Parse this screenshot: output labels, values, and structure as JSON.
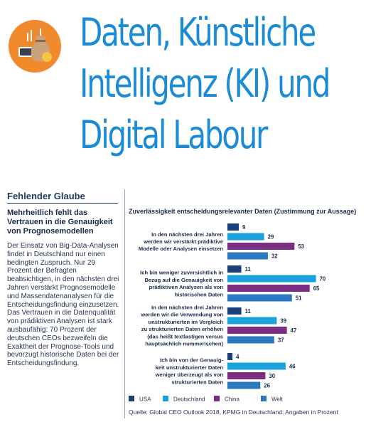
{
  "header": {
    "icon_name": "money-bag-icon",
    "title_lines": [
      "Daten, Künstliche",
      "Intelligenz (KI) und",
      "Digital Labour"
    ]
  },
  "article": {
    "section_label": "Fehlender Glaube",
    "subhead": "Mehrheitlich fehlt das Vertrauen in die Genauigkeit von Prognosemodellen",
    "body": "Der Einsatz von Big-Data-Analysen findet in Deutschland nur einen bedingten Zuspruch. Nur 29 Prozent der Befragten beabsichtigen, in den nächsten drei Jahren verstärkt Prognosemodelle und Massendatenanalysen für die Entscheidungsfindung einzusetzen. Das Vertrauen in die Datenqualität von prädiktiven Analysen ist stark ausbaufähig: 70 Prozent der deutschen CEOs bezweifeln die Exaktheit der Prognose-Tools und bevorzugt historische Daten bei der Entscheidungsfindung."
  },
  "chart_data": {
    "type": "bar",
    "orientation": "horizontal",
    "title": "Zuverlässigkeit entscheidungsrelevanter Daten (Zustimmung zur Aussage)",
    "categories": [
      [
        "In den nächsten drei Jahren",
        "werden wir verstärkt prädiktive",
        "Modelle oder Analysen einsetzen"
      ],
      [
        "Ich bin weniger zuversichtlich in",
        "Bezug auf die Genauigkeit von",
        "prädiktiven Analysen als von",
        "historischen Daten"
      ],
      [
        "In den nächsten drei Jahren",
        "werden wir die Verwendung von",
        "unstrukturierten im Vergleich",
        "zu strukturierten Daten erhöhen",
        "(das heißt textlastigen versus",
        "hauptsächlich nummerischen)"
      ],
      [
        "Ich bin von der Genauig-",
        "keit unstrukturierter Daten",
        "weniger überzeugt als von",
        "strukturierten Daten"
      ]
    ],
    "series": [
      {
        "name": "USA",
        "color": "#1b3f7a",
        "values": [
          9,
          11,
          11,
          4
        ]
      },
      {
        "name": "Deutschland",
        "color": "#1ba2dc",
        "values": [
          29,
          70,
          39,
          46
        ]
      },
      {
        "name": "China",
        "color": "#7b2d82",
        "values": [
          53,
          65,
          47,
          30
        ]
      },
      {
        "name": "Welt",
        "color": "#2b78c0",
        "values": [
          32,
          51,
          37,
          26
        ]
      }
    ],
    "xlim": [
      0,
      70
    ],
    "data_labels": true,
    "grid": false,
    "legend_position": "bottom",
    "source": "Quelle: Global CEO Outlook 2018, KPMG in Deutschland; Angaben in Prozent"
  }
}
